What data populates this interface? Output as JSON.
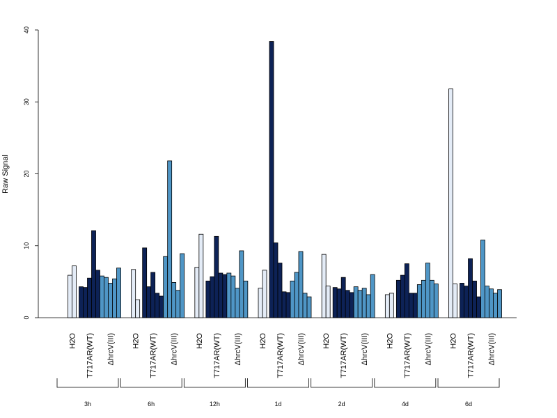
{
  "chart_data": {
    "type": "bar",
    "ylabel": "Raw Signal",
    "ylim": [
      0,
      40
    ],
    "yticks": [
      0,
      10,
      20,
      30,
      40
    ],
    "grid": false,
    "time_groups": [
      "3h",
      "6h",
      "12h",
      "1d",
      "2d",
      "4d",
      "6d"
    ],
    "treatments": [
      "H2O",
      "T717AR(WT)",
      "ΔhrcV(III)"
    ],
    "series": [
      {
        "treatment": "H2O",
        "color": "#e4ecf7",
        "values": [
          [
            5.9,
            7.2
          ],
          [
            6.7,
            2.5
          ],
          [
            7.0,
            11.6
          ],
          [
            4.1,
            6.6
          ],
          [
            8.8,
            4.4
          ],
          [
            3.2,
            3.4
          ],
          [
            31.8,
            4.7
          ]
        ]
      },
      {
        "treatment": "T717AR(WT)",
        "color": "#0d2256",
        "values": [
          [
            4.3,
            4.2,
            5.5,
            12.1,
            6.6
          ],
          [
            9.7,
            4.3,
            6.3,
            3.4,
            3.0
          ],
          [
            5.1,
            5.7,
            11.3,
            6.2,
            6.0
          ],
          [
            38.4,
            10.4,
            7.6,
            3.6,
            3.5
          ],
          [
            4.2,
            4.0,
            5.6,
            3.8,
            3.5
          ],
          [
            5.2,
            5.9,
            7.5,
            3.4,
            3.4
          ],
          [
            4.8,
            4.4,
            8.2,
            5.1,
            2.9
          ]
        ]
      },
      {
        "treatment": "ΔhrcV(III)",
        "color": "#4f96c6",
        "values": [
          [
            5.8,
            5.6,
            4.8,
            5.4,
            6.9
          ],
          [
            8.5,
            21.8,
            4.9,
            3.8,
            8.9
          ],
          [
            6.2,
            5.8,
            4.1,
            9.3,
            5.1
          ],
          [
            5.1,
            6.3,
            9.2,
            3.4,
            2.9
          ],
          [
            4.3,
            3.8,
            4.1,
            3.2,
            6.0
          ],
          [
            4.6,
            5.2,
            7.6,
            5.2,
            4.7
          ],
          [
            10.8,
            4.4,
            4.0,
            3.4,
            3.9
          ]
        ]
      }
    ]
  }
}
